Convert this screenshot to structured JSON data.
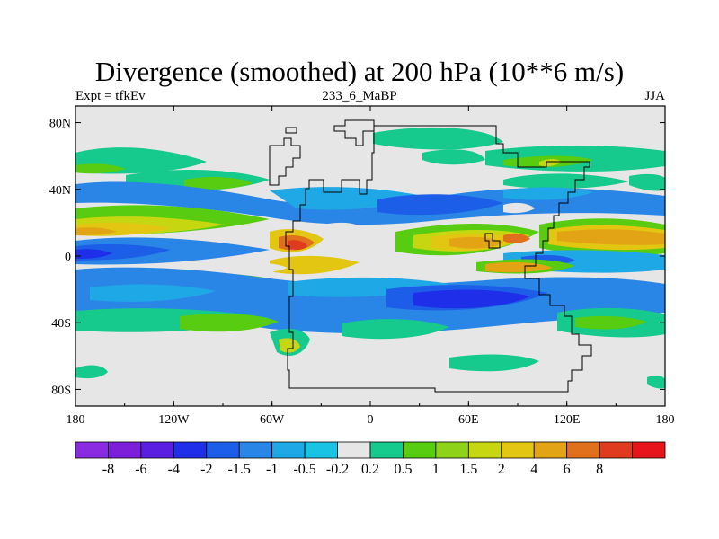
{
  "title": "Divergence (smoothed) at 200 hPa (10**6 m/s)",
  "subtitle_left": "Expt = tfkEv",
  "subtitle_center": "233_6_MaBP",
  "subtitle_right": "JJA",
  "map": {
    "projection": "cylindrical-equidistant",
    "x_ticks": [
      "180",
      "120W",
      "60W",
      "0",
      "60E",
      "120E",
      "180"
    ],
    "y_ticks": [
      "80N",
      "40N",
      "0",
      "40S",
      "80S"
    ],
    "background_color": "#e6e6e6",
    "coastline_color": "#000000"
  },
  "colorbar": {
    "colors": [
      "#8a2be2",
      "#7b1fd9",
      "#5a1ee0",
      "#1f2ee8",
      "#1d5ee8",
      "#2a86e6",
      "#1fa8e6",
      "#19c3e3",
      "#e6e6e6",
      "#16c98c",
      "#58cc10",
      "#8fd21a",
      "#c6d712",
      "#e3c611",
      "#e2a414",
      "#e0701b",
      "#e03a1f",
      "#e8141b"
    ],
    "labels": [
      "-8",
      "-6",
      "-4",
      "-2",
      "-1.5",
      "-1",
      "-0.5",
      "-0.2",
      "0.2",
      "0.5",
      "1",
      "1.5",
      "2",
      "4",
      "6",
      "8"
    ]
  }
}
